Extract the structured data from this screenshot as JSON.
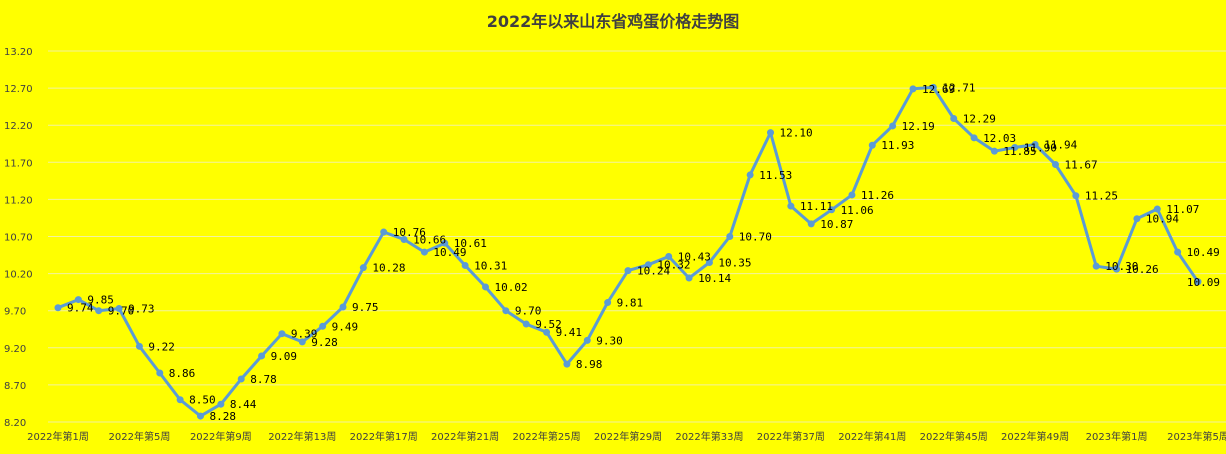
{
  "chart_data": {
    "type": "line",
    "title": "2022年以来山东省鸡蛋价格走势图",
    "xlabel": "",
    "ylabel": "",
    "ylim": [
      8.2,
      13.2
    ],
    "yticks": [
      "8.20",
      "8.70",
      "9.20",
      "9.70",
      "10.20",
      "10.70",
      "11.20",
      "11.70",
      "12.20",
      "12.70",
      "13.20"
    ],
    "grid": true,
    "legend": "none",
    "x_tick_labels": [
      {
        "index": 0,
        "label": "2022年第1周"
      },
      {
        "index": 4,
        "label": "2022年第5周"
      },
      {
        "index": 8,
        "label": "2022年第9周"
      },
      {
        "index": 12,
        "label": "2022年第13周"
      },
      {
        "index": 16,
        "label": "2022年第17周"
      },
      {
        "index": 20,
        "label": "2022年第21周"
      },
      {
        "index": 24,
        "label": "2022年第25周"
      },
      {
        "index": 28,
        "label": "2022年第29周"
      },
      {
        "index": 32,
        "label": "2022年第33周"
      },
      {
        "index": 36,
        "label": "2022年第37周"
      },
      {
        "index": 40,
        "label": "2022年第41周"
      },
      {
        "index": 44,
        "label": "2022年第45周"
      },
      {
        "index": 48,
        "label": "2022年第49周"
      },
      {
        "index": 52,
        "label": "2023年第1周"
      },
      {
        "index": 56,
        "label": "2023年第5周"
      }
    ],
    "series": [
      {
        "color": "#5b9bd5",
        "values": [
          9.74,
          9.85,
          9.7,
          9.73,
          9.22,
          8.86,
          8.5,
          8.28,
          8.44,
          8.78,
          9.09,
          9.39,
          9.28,
          9.49,
          9.75,
          10.28,
          10.76,
          10.66,
          10.49,
          10.61,
          10.31,
          10.02,
          9.7,
          9.52,
          9.41,
          8.98,
          9.3,
          9.81,
          10.24,
          10.32,
          10.43,
          10.14,
          10.35,
          10.7,
          11.53,
          12.1,
          11.11,
          10.87,
          11.06,
          11.26,
          11.93,
          12.19,
          12.69,
          12.71,
          12.29,
          12.03,
          11.85,
          11.9,
          11.94,
          11.67,
          11.25,
          10.3,
          10.26,
          10.94,
          11.07,
          10.49,
          10.09
        ],
        "labels": [
          "9.74",
          "9.85",
          "9.70",
          "9.73",
          "9.22",
          "8.86",
          "8.50",
          "8.28",
          "8.44",
          "8.78",
          "9.09",
          "9.39",
          "9.28",
          "9.49",
          "9.75",
          "10.28",
          "10.76",
          "10.66",
          "10.49",
          "10.61",
          "10.31",
          "10.02",
          "9.70",
          "9.52",
          "9.41",
          "8.98",
          "9.30",
          "9.81",
          "10.24",
          "10.32",
          "10.43",
          "10.14",
          "10.35",
          "10.70",
          "11.53",
          "12.10",
          "11.11",
          "10.87",
          "11.06",
          "11.26",
          "11.93",
          "12.19",
          "12.69",
          "12.71",
          "12.29",
          "12.03",
          "11.85",
          "11.90",
          "11.94",
          "11.67",
          "11.25",
          "10.30",
          "10.26",
          "10.94",
          "11.07",
          "10.49",
          "10.09"
        ]
      }
    ]
  }
}
